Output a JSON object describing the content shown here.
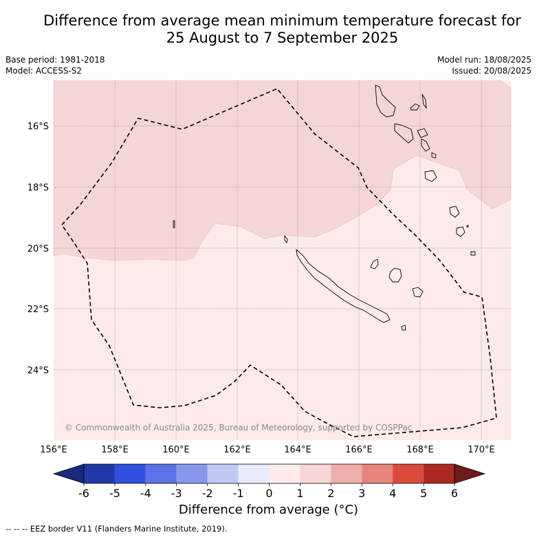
{
  "title_line1": "Difference from average mean minimum temperature forecast for",
  "title_line2": "25 August to 7 September 2025",
  "base_period": "Base period: 1981-2018",
  "model": "Model: ACCESS-S2",
  "model_run": "Model run: 18/08/2025",
  "issued": "Issued: 20/08/2025",
  "copyright": "© Commonwealth of Australia 2025, Bureau of Meteorology, supported by COSPPac",
  "lon_labels": [
    "156°E",
    "158°E",
    "160°E",
    "162°E",
    "164°E",
    "166°E",
    "168°E",
    "170°E"
  ],
  "lat_labels": [
    "16°S",
    "18°S",
    "20°S",
    "22°S",
    "24°S"
  ],
  "colorbar": {
    "title": "Difference from average (°C)",
    "ticks": [
      "-6",
      "-5",
      "-4",
      "-3",
      "-2",
      "-1",
      "0",
      "1",
      "2",
      "3",
      "4",
      "5",
      "6"
    ],
    "colors": [
      "#1a2a7a",
      "#2338a8",
      "#2e4fe0",
      "#5a72e6",
      "#8797ec",
      "#c2c8f4",
      "#e8ebfa",
      "#fdeceb",
      "#f5d5d5",
      "#efaeaa",
      "#e8857d",
      "#dc4a3e",
      "#ab2922",
      "#6e1a16"
    ]
  },
  "legend_note": "--  --  -- EEZ border V11 (Flanders Marine Institute, 2019).",
  "regions": [
    {
      "name": "0 to 1 °C",
      "color": "#fcebea"
    },
    {
      "name": "1 to 2 °C",
      "color": "#f5d6d6"
    }
  ]
}
